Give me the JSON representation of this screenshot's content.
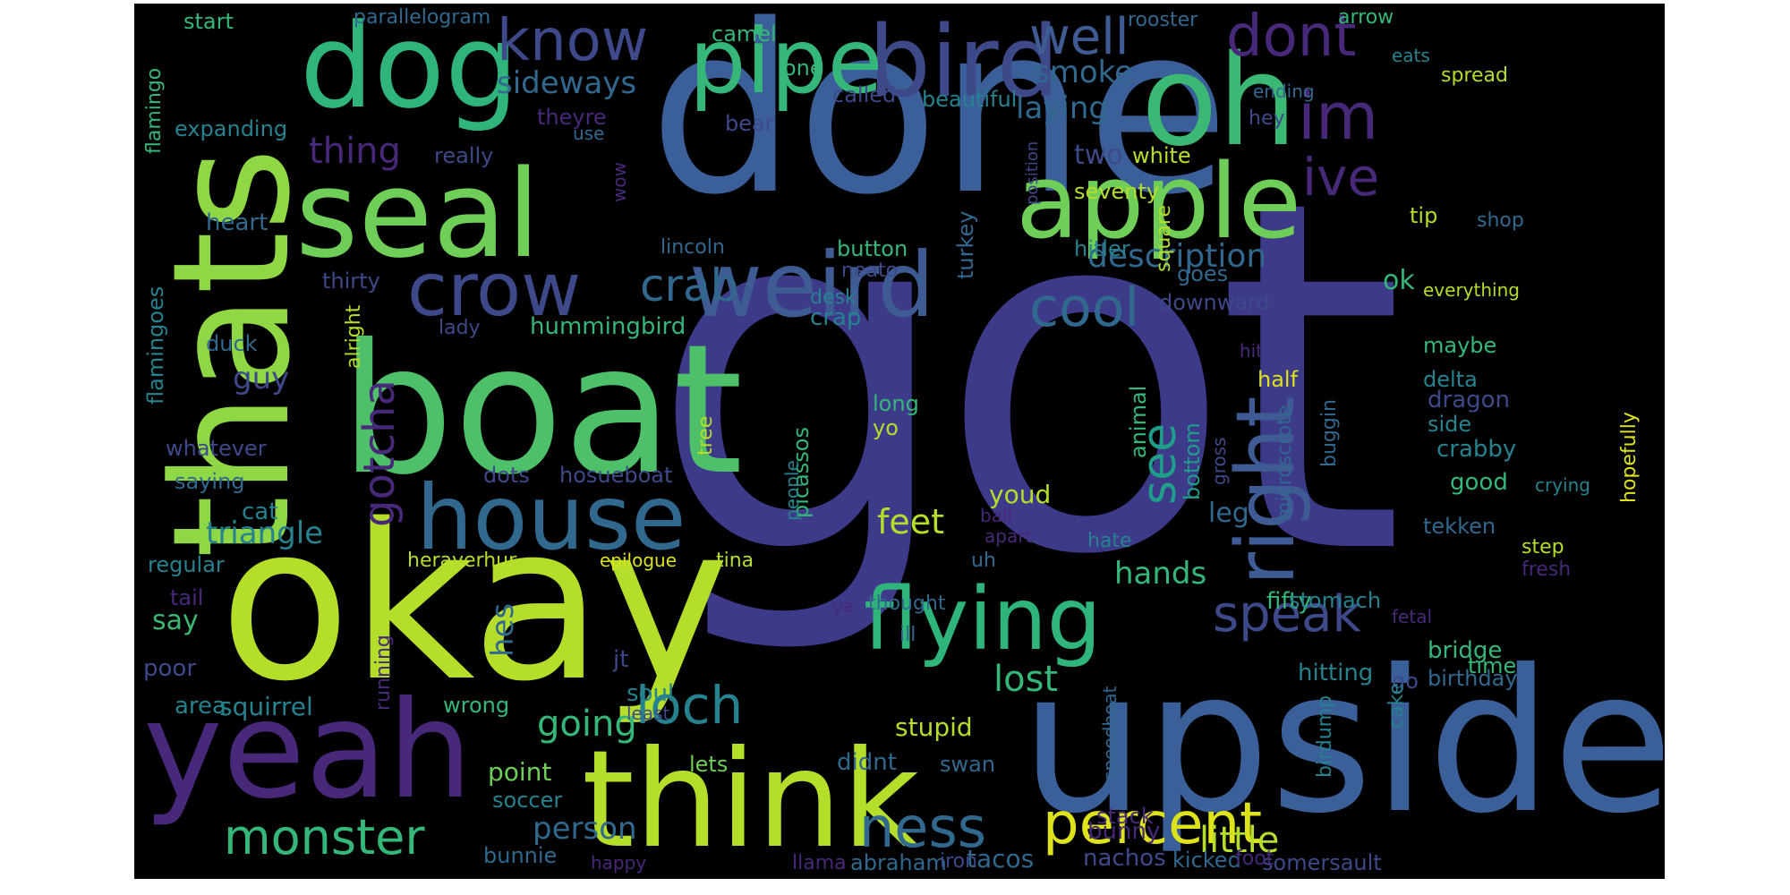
{
  "colors": {
    "background": "#000000",
    "page": "#ffffff",
    "palette": {
      "deep_purple": "#440154",
      "purple": "#482878",
      "indigo": "#3e4989",
      "blue": "#31688e",
      "teal": "#26828e",
      "green_teal": "#1f9e89",
      "green": "#35b779",
      "light_green": "#6ece58",
      "lime": "#b5de2b",
      "yellow": "#fde725"
    }
  },
  "words": [
    {
      "text": "got",
      "color": "#3e3a8a"
    },
    {
      "text": "done",
      "color": "#3b5f99"
    },
    {
      "text": "upside",
      "color": "#3b5f99"
    },
    {
      "text": "okay",
      "color": "#b5de2b"
    },
    {
      "text": "boat",
      "color": "#4ec06a"
    },
    {
      "text": "thats",
      "color": "#8fd744"
    },
    {
      "text": "think",
      "color": "#b5de2b"
    },
    {
      "text": "yeah",
      "color": "#482878"
    },
    {
      "text": "oh",
      "color": "#3bb873"
    },
    {
      "text": "dog",
      "color": "#2fb47c"
    },
    {
      "text": "seal",
      "color": "#6ece58"
    },
    {
      "text": "bird",
      "color": "#3e4989"
    },
    {
      "text": "pipe",
      "color": "#35b779"
    },
    {
      "text": "apple",
      "color": "#6ece58"
    },
    {
      "text": "house",
      "color": "#31688e"
    },
    {
      "text": "weird",
      "color": "#3e5c93"
    },
    {
      "text": "flying",
      "color": "#2fb47c"
    },
    {
      "text": "crow",
      "color": "#3e4989"
    },
    {
      "text": "right",
      "color": "#3e5c93"
    },
    {
      "text": "know",
      "color": "#3e4989"
    },
    {
      "text": "well",
      "color": "#3e5c93"
    },
    {
      "text": "dont",
      "color": "#482878"
    },
    {
      "text": "im",
      "color": "#482878"
    },
    {
      "text": "ive",
      "color": "#482878"
    },
    {
      "text": "percent",
      "color": "#dde318"
    },
    {
      "text": "ness",
      "color": "#31688e"
    },
    {
      "text": "monster",
      "color": "#35b779"
    },
    {
      "text": "loch",
      "color": "#26828e"
    },
    {
      "text": "cool",
      "color": "#31688e"
    },
    {
      "text": "see",
      "color": "#1f9e89"
    },
    {
      "text": "speak",
      "color": "#3e4989"
    },
    {
      "text": "gotcha",
      "color": "#482878"
    },
    {
      "text": "crab",
      "color": "#31688e"
    },
    {
      "text": "sideways",
      "color": "#31688e"
    },
    {
      "text": "smoke",
      "color": "#31688e"
    },
    {
      "text": "laying",
      "color": "#31688e"
    },
    {
      "text": "description",
      "color": "#31688e"
    },
    {
      "text": "little",
      "color": "#b5de2b"
    },
    {
      "text": "triangle",
      "color": "#26828e"
    },
    {
      "text": "going",
      "color": "#35b779"
    },
    {
      "text": "lost",
      "color": "#35b779"
    },
    {
      "text": "feet",
      "color": "#b5de2b"
    },
    {
      "text": "hands",
      "color": "#35b779"
    },
    {
      "text": "person",
      "color": "#31688e"
    },
    {
      "text": "thing",
      "color": "#482878"
    },
    {
      "text": "two",
      "color": "#3e4989"
    },
    {
      "text": "white",
      "color": "#b5de2b"
    },
    {
      "text": "guy",
      "color": "#3e4989"
    },
    {
      "text": "hes",
      "color": "#31688e"
    },
    {
      "text": "say",
      "color": "#3bb873"
    },
    {
      "text": "ok",
      "color": "#35b779"
    },
    {
      "text": "leg",
      "color": "#31688e"
    },
    {
      "text": "fifty",
      "color": "#35b779"
    },
    {
      "text": "youd",
      "color": "#b5de2b"
    },
    {
      "text": "stupid",
      "color": "#b5de2b"
    },
    {
      "text": "tacos",
      "color": "#31688e"
    },
    {
      "text": "nachos",
      "color": "#3e4989"
    },
    {
      "text": "kicked",
      "color": "#31688e"
    },
    {
      "text": "somersault",
      "color": "#3e4989"
    },
    {
      "text": "bunny",
      "color": "#482878"
    },
    {
      "text": "stack",
      "color": "#482878"
    },
    {
      "text": "foot",
      "color": "#482878"
    },
    {
      "text": "abraham",
      "color": "#31688e"
    },
    {
      "text": "llama",
      "color": "#482878"
    },
    {
      "text": "iron",
      "color": "#3e4989"
    },
    {
      "text": "bunnie",
      "color": "#31688e"
    },
    {
      "text": "point",
      "color": "#6ece58"
    },
    {
      "text": "soccer",
      "color": "#26828e"
    },
    {
      "text": "happy",
      "color": "#482878"
    },
    {
      "text": "lets",
      "color": "#6ece58"
    },
    {
      "text": "didnt",
      "color": "#31688e"
    },
    {
      "text": "swan",
      "color": "#31688e"
    },
    {
      "text": "soul",
      "color": "#26828e"
    },
    {
      "text": "least",
      "color": "#3e4989"
    },
    {
      "text": "jt",
      "color": "#3e4989"
    },
    {
      "text": "squirrel",
      "color": "#26828e"
    },
    {
      "text": "wrong",
      "color": "#35b779"
    },
    {
      "text": "area",
      "color": "#26828e"
    },
    {
      "text": "poor",
      "color": "#3e4989"
    },
    {
      "text": "running",
      "color": "#482878"
    },
    {
      "text": "tail",
      "color": "#482878"
    },
    {
      "text": "regular",
      "color": "#26828e"
    },
    {
      "text": "cat",
      "color": "#26828e"
    },
    {
      "text": "saying",
      "color": "#31688e"
    },
    {
      "text": "dots",
      "color": "#3e4989"
    },
    {
      "text": "hosueboat",
      "color": "#3e4989"
    },
    {
      "text": "whatever",
      "color": "#3e4989"
    },
    {
      "text": "alright",
      "color": "#b5de2b"
    },
    {
      "text": "duck",
      "color": "#31688e"
    },
    {
      "text": "flamingoes",
      "color": "#26828e"
    },
    {
      "text": "flamingo",
      "color": "#35b779"
    },
    {
      "text": "expanding",
      "color": "#26828e"
    },
    {
      "text": "start",
      "color": "#35b779"
    },
    {
      "text": "parallelogram",
      "color": "#31688e"
    },
    {
      "text": "camel",
      "color": "#35b779"
    },
    {
      "text": "one",
      "color": "#35b779"
    },
    {
      "text": "theyre",
      "color": "#482878"
    },
    {
      "text": "use",
      "color": "#31688e"
    },
    {
      "text": "really",
      "color": "#3e4989"
    },
    {
      "text": "heart",
      "color": "#31688e"
    },
    {
      "text": "wow",
      "color": "#482878"
    },
    {
      "text": "bear",
      "color": "#3e4989"
    },
    {
      "text": "called",
      "color": "#3e4989"
    },
    {
      "text": "beautiful",
      "color": "#26828e"
    },
    {
      "text": "rooster",
      "color": "#31688e"
    },
    {
      "text": "arrow",
      "color": "#35b779"
    },
    {
      "text": "eats",
      "color": "#26828e"
    },
    {
      "text": "spread",
      "color": "#b5de2b"
    },
    {
      "text": "ending",
      "color": "#31688e"
    },
    {
      "text": "hey",
      "color": "#3e4989"
    },
    {
      "text": "position",
      "color": "#3e4989"
    },
    {
      "text": "seventy",
      "color": "#b5de2b"
    },
    {
      "text": "tip",
      "color": "#b5de2b"
    },
    {
      "text": "shop",
      "color": "#31688e"
    },
    {
      "text": "turkey",
      "color": "#31688e"
    },
    {
      "text": "lincoln",
      "color": "#31688e"
    },
    {
      "text": "button",
      "color": "#35b779"
    },
    {
      "text": "neato",
      "color": "#3e4989"
    },
    {
      "text": "desk",
      "color": "#26828e"
    },
    {
      "text": "crap",
      "color": "#26828e"
    },
    {
      "text": "hitler",
      "color": "#26828e"
    },
    {
      "text": "square",
      "color": "#b5de2b"
    },
    {
      "text": "goes",
      "color": "#31688e"
    },
    {
      "text": "downward",
      "color": "#3e4989"
    },
    {
      "text": "everything",
      "color": "#b5de2b"
    },
    {
      "text": "thirty",
      "color": "#3e4989"
    },
    {
      "text": "lady",
      "color": "#3e4989"
    },
    {
      "text": "hummingbird",
      "color": "#35b779"
    },
    {
      "text": "hit",
      "color": "#482878"
    },
    {
      "text": "half",
      "color": "#dde318"
    },
    {
      "text": "maybe",
      "color": "#35b779"
    },
    {
      "text": "delta",
      "color": "#26828e"
    },
    {
      "text": "long",
      "color": "#35b779"
    },
    {
      "text": "yo",
      "color": "#b5de2b"
    },
    {
      "text": "picassos",
      "color": "#35b779"
    },
    {
      "text": "tree",
      "color": "#b5de2b"
    },
    {
      "text": "animal",
      "color": "#35b779"
    },
    {
      "text": "bottom",
      "color": "#1f9e89"
    },
    {
      "text": "gross",
      "color": "#3e4989"
    },
    {
      "text": "microscrote",
      "color": "#31688e"
    },
    {
      "text": "buggin",
      "color": "#31688e"
    },
    {
      "text": "dragon",
      "color": "#3e4989"
    },
    {
      "text": "side",
      "color": "#26828e"
    },
    {
      "text": "crabby",
      "color": "#26828e"
    },
    {
      "text": "hopefully",
      "color": "#dde318"
    },
    {
      "text": "good",
      "color": "#35b779"
    },
    {
      "text": "crying",
      "color": "#26828e"
    },
    {
      "text": "ball",
      "color": "#482878"
    },
    {
      "text": "apart",
      "color": "#482878"
    },
    {
      "text": "people",
      "color": "#26828e"
    },
    {
      "text": "hate",
      "color": "#26828e"
    },
    {
      "text": "tekken",
      "color": "#31688e"
    },
    {
      "text": "step",
      "color": "#b5de2b"
    },
    {
      "text": "fresh",
      "color": "#482878"
    },
    {
      "text": "heraverhur",
      "color": "#b5de2b"
    },
    {
      "text": "epilogue",
      "color": "#dde318"
    },
    {
      "text": "tina",
      "color": "#b5de2b"
    },
    {
      "text": "uh",
      "color": "#31688e"
    },
    {
      "text": "thought",
      "color": "#31688e"
    },
    {
      "text": "ya",
      "color": "#482878"
    },
    {
      "text": "ill",
      "color": "#31688e"
    },
    {
      "text": "stomach",
      "color": "#26828e"
    },
    {
      "text": "fetal",
      "color": "#482878"
    },
    {
      "text": "bridge",
      "color": "#35b779"
    },
    {
      "text": "birthday",
      "color": "#31688e"
    },
    {
      "text": "hitting",
      "color": "#26828e"
    },
    {
      "text": "go",
      "color": "#3e4989"
    },
    {
      "text": "time",
      "color": "#35b779"
    },
    {
      "text": "cake",
      "color": "#26828e"
    },
    {
      "text": "birdump",
      "color": "#26828e"
    },
    {
      "text": "speedboat",
      "color": "#31688e"
    }
  ]
}
